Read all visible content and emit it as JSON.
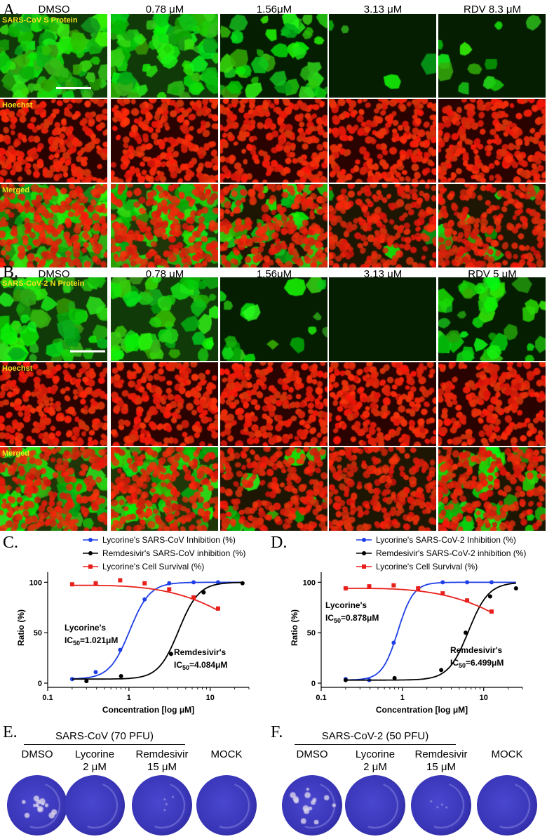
{
  "panel_a": {
    "letter": "A.",
    "columns": [
      "DMSO",
      "0.78 μM",
      "1.56μM",
      "3.13 μM",
      "RDV 8.3 μM"
    ],
    "rows": [
      "SARS-CoV S Protein",
      "Hoechst",
      "Merged"
    ],
    "green_coverage": [
      0.75,
      0.7,
      0.35,
      0.03,
      0.08
    ]
  },
  "panel_b": {
    "letter": "B.",
    "columns": [
      "DMSO",
      "0.78 μM",
      "1.56μM",
      "3.13 μM",
      "RDV 5 μM"
    ],
    "rows": [
      "SARS-CoV-2 N Protein",
      "Hoechst",
      "Merged"
    ],
    "green_coverage": [
      0.55,
      0.45,
      0.12,
      0.0,
      0.3
    ]
  },
  "panel_c": {
    "letter": "C."
  },
  "panel_d": {
    "letter": "D."
  },
  "chart_data": [
    {
      "type": "scatter",
      "xlabel": "Concentration [log μM]",
      "ylabel": "Ratio (%)",
      "xscale": "log",
      "xlim": [
        0.1,
        30
      ],
      "ylim": [
        0,
        110
      ],
      "xticks": [
        "0.1",
        "1",
        "10"
      ],
      "yticks": [
        "0",
        "50",
        "100"
      ],
      "legend_position": "top",
      "series": [
        {
          "name": "Lycorine's SARS-CoV Inhibition (%)",
          "color": "#1f3fe6",
          "marker": "circle",
          "x": [
            0.2,
            0.39,
            0.78,
            1.56,
            3.13,
            6.25,
            12.5
          ],
          "y": [
            4,
            11,
            33,
            83,
            99,
            100,
            100
          ],
          "fit": {
            "bottom": 4,
            "top": 100,
            "ic50": 1.021,
            "hill": 3.5
          }
        },
        {
          "name": "Remdesivir's SARS-CoV inhibition (%)",
          "color": "#000000",
          "marker": "circle",
          "x": [
            0.3,
            0.8,
            3.3,
            8.3,
            25
          ],
          "y": [
            2,
            7,
            29,
            90,
            99
          ],
          "fit": {
            "bottom": 4,
            "top": 100,
            "ic50": 4.084,
            "hill": 3.5
          }
        },
        {
          "name": "Lycorine's Cell Survival (%)",
          "color": "#e8201c",
          "marker": "square",
          "x": [
            0.2,
            0.39,
            0.78,
            1.56,
            3.13,
            6.25,
            12.5
          ],
          "y": [
            98,
            99,
            102,
            99,
            93,
            85,
            74
          ],
          "fit": {
            "type": "decline",
            "start": 97,
            "end": 72
          }
        }
      ],
      "annotations": [
        {
          "line1": "Lycorine's",
          "ic_label": "IC",
          "ic_sub": "50",
          "ic_value": "=1.021μM"
        },
        {
          "line1": "Remdesivir's",
          "ic_label": "IC",
          "ic_sub": "50",
          "ic_value": "=4.084μM"
        }
      ]
    },
    {
      "type": "scatter",
      "xlabel": "Concentration [log μM]",
      "ylabel": "Ratio (%)",
      "xscale": "log",
      "xlim": [
        0.1,
        30
      ],
      "ylim": [
        0,
        110
      ],
      "xticks": [
        "0.1",
        "1",
        "10"
      ],
      "yticks": [
        "0",
        "50",
        "100"
      ],
      "legend_position": "top",
      "series": [
        {
          "name": "Lycorine's SARS-CoV-2 Inhibition (%)",
          "color": "#1f3fe6",
          "marker": "circle",
          "x": [
            0.2,
            0.39,
            0.78,
            1.56,
            3.13,
            6.25,
            12.5
          ],
          "y": [
            4,
            3,
            40,
            93,
            100,
            100,
            100
          ],
          "fit": {
            "bottom": 3,
            "top": 100,
            "ic50": 0.878,
            "hill": 4.5
          }
        },
        {
          "name": "Remdesivir's SARS-CoV-2 inhibition (%)",
          "color": "#000000",
          "marker": "circle",
          "x": [
            0.2,
            0.8,
            3.0,
            6.0,
            12.0,
            25
          ],
          "y": [
            3,
            5,
            13,
            50,
            86,
            94
          ],
          "fit": {
            "bottom": 3,
            "top": 100,
            "ic50": 6.499,
            "hill": 3.5
          }
        },
        {
          "name": "Lycorine's Cell Survival (%)",
          "color": "#e8201c",
          "marker": "square",
          "x": [
            0.2,
            0.39,
            0.78,
            1.56,
            3.13,
            6.25,
            12.5
          ],
          "y": [
            94,
            96,
            97,
            94,
            89,
            82,
            71
          ],
          "fit": {
            "type": "decline",
            "start": 94,
            "end": 70
          }
        }
      ],
      "annotations": [
        {
          "line1": "Lycorine's",
          "ic_label": "IC",
          "ic_sub": "50",
          "ic_value": "=0.878μM"
        },
        {
          "line1": "Remdesivir's",
          "ic_label": "IC",
          "ic_sub": "50",
          "ic_value": "=6.499μM"
        }
      ]
    }
  ],
  "panel_e": {
    "letter": "E.",
    "group_title": "SARS-CoV (70 PFU)",
    "labels": [
      {
        "line1": "DMSO",
        "line2": ""
      },
      {
        "line1": "Lycorine",
        "line2": "2 μM"
      },
      {
        "line1": "Remdesivir",
        "line2": "15 μM"
      },
      {
        "line1": "MOCK",
        "line2": ""
      }
    ]
  },
  "panel_f": {
    "letter": "F.",
    "group_title": "SARS-CoV-2 (50 PFU)",
    "labels": [
      {
        "line1": "DMSO",
        "line2": ""
      },
      {
        "line1": "Lycorine",
        "line2": "2 μM"
      },
      {
        "line1": "Remdesivir",
        "line2": "15 μM"
      },
      {
        "line1": "MOCK",
        "line2": ""
      }
    ]
  },
  "colors": {
    "fitc_green": "#39e21a",
    "hoechst_red": "#e8230f",
    "label_yellow": "#f4e41c",
    "crystal_violet": "#3a36b8"
  }
}
